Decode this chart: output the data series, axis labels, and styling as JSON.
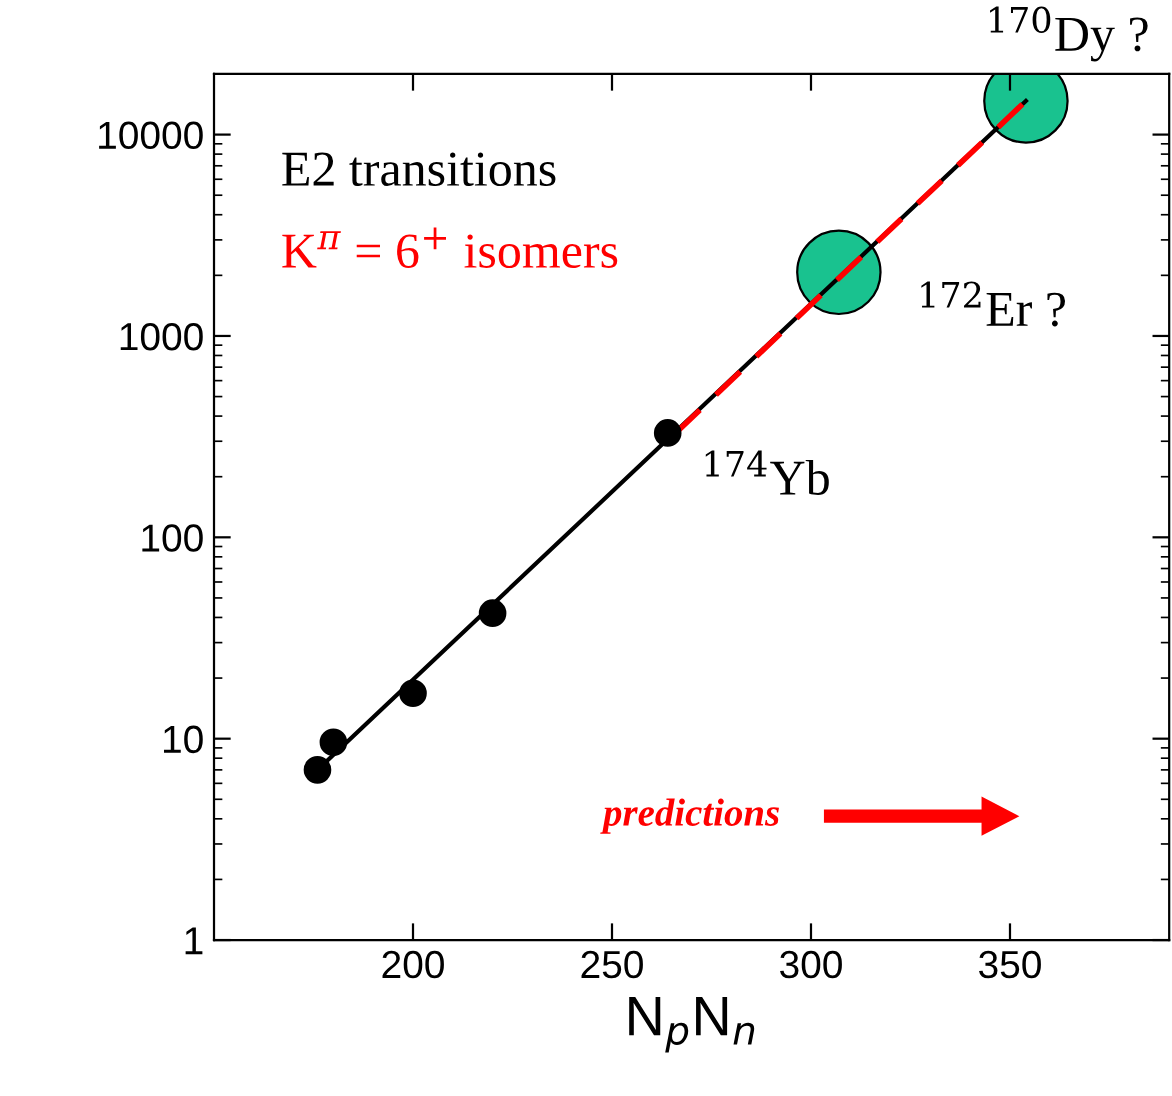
{
  "chart_data": {
    "type": "scatter",
    "xlabel": "N$_{p}$N$_{n}$",
    "xlim": [
      150,
      390
    ],
    "xticks": [
      200,
      250,
      300,
      350
    ],
    "ylim": [
      1,
      20000
    ],
    "yticks": [
      1,
      10,
      100,
      1000,
      10000
    ],
    "log": "y",
    "grid": false,
    "legend": false,
    "series": [
      {
        "type": "line",
        "color": "#000000",
        "x": [
          176,
          354
        ],
        "values": [
          7,
          14700
        ],
        "marker": "none",
        "line_style": "solid"
      },
      {
        "type": "line",
        "color": "#ff0000",
        "x": [
          266,
          354
        ],
        "values": [
          330,
          14700
        ],
        "marker": "none",
        "line_style": "dashed"
      },
      {
        "color": "#000000",
        "x": [
          176,
          180,
          200,
          220,
          264
        ],
        "values": [
          7,
          9.6,
          16.8,
          42,
          330
        ],
        "marker": "circle"
      },
      {
        "type": "bubble",
        "color": "#19c28f",
        "x": [
          307,
          354
        ],
        "values": [
          2070,
          14700
        ],
        "sizes": [
          1,
          1
        ],
        "marker": "circle"
      }
    ],
    "annotations": [
      "E2 transitions",
      "K$^{π}$ = 6$^{+}$ isomers",
      "predictions",
      {
        "text": "$^{174}$Yb",
        "x": 264,
        "y": 330
      },
      {
        "text": "$^{172}$Er ?",
        "x": 307,
        "y": 2070
      },
      {
        "text": "$^{170}$Dy ?",
        "x": 354,
        "y": 14700
      }
    ]
  }
}
